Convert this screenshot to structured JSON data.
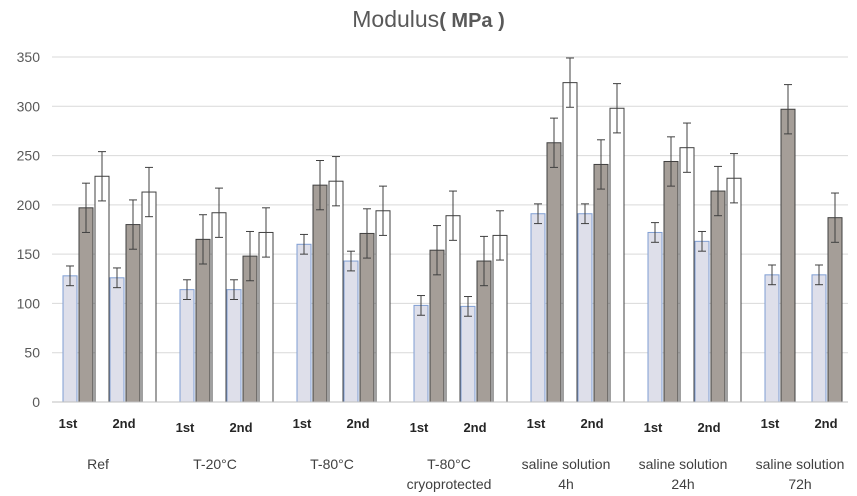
{
  "chart_data": {
    "type": "bar",
    "title": "Modulus",
    "title_unit": "( MPa )",
    "ylim": [
      0,
      350
    ],
    "yticks": [
      0,
      50,
      100,
      150,
      200,
      250,
      300,
      350
    ],
    "grid": true,
    "subgroup_labels": [
      "1st",
      "2nd"
    ],
    "groups": [
      {
        "label": [
          "Ref"
        ],
        "sub": [
          {
            "bars": [
              128,
              197,
              229
            ],
            "errors": [
              10,
              25,
              25
            ]
          },
          {
            "bars": [
              126,
              180,
              213
            ],
            "errors": [
              10,
              25,
              25
            ]
          }
        ]
      },
      {
        "label": [
          "T-20°C"
        ],
        "sub": [
          {
            "bars": [
              114,
              165,
              192
            ],
            "errors": [
              10,
              25,
              25
            ]
          },
          {
            "bars": [
              114,
              148,
              172
            ],
            "errors": [
              10,
              25,
              25
            ]
          }
        ]
      },
      {
        "label": [
          "T-80°C"
        ],
        "sub": [
          {
            "bars": [
              160,
              220,
              224
            ],
            "errors": [
              10,
              25,
              25
            ]
          },
          {
            "bars": [
              143,
              171,
              194
            ],
            "errors": [
              10,
              25,
              25
            ]
          }
        ]
      },
      {
        "label": [
          "T-80°C",
          "cryoprotected"
        ],
        "sub": [
          {
            "bars": [
              98,
              154,
              189
            ],
            "errors": [
              10,
              25,
              25
            ]
          },
          {
            "bars": [
              97,
              143,
              169
            ],
            "errors": [
              10,
              25,
              25
            ]
          }
        ]
      },
      {
        "label": [
          "saline solution",
          "4h"
        ],
        "sub": [
          {
            "bars": [
              191,
              263,
              324
            ],
            "errors": [
              10,
              25,
              25
            ]
          },
          {
            "bars": [
              191,
              241,
              298
            ],
            "errors": [
              10,
              25,
              25
            ]
          }
        ]
      },
      {
        "label": [
          "saline solution",
          "24h"
        ],
        "sub": [
          {
            "bars": [
              172,
              244,
              258
            ],
            "errors": [
              10,
              25,
              25
            ]
          },
          {
            "bars": [
              163,
              214,
              227
            ],
            "errors": [
              10,
              25,
              25
            ]
          }
        ]
      },
      {
        "label": [
          "saline solution",
          "72h"
        ],
        "sub": [
          {
            "bars": [
              129,
              297
            ],
            "errors": [
              10,
              25
            ]
          },
          {
            "bars": [
              129,
              187
            ],
            "errors": [
              10,
              25
            ]
          }
        ]
      }
    ],
    "colors": {
      "light": {
        "fill": "#dedfea",
        "stroke": "#7f9ed3"
      },
      "dark": {
        "fill": "#a59e98",
        "stroke": "#404040"
      },
      "white": {
        "fill": "#ffffff",
        "stroke": "#404040"
      },
      "grid": "#d9d9d9",
      "error": "#404040"
    }
  }
}
